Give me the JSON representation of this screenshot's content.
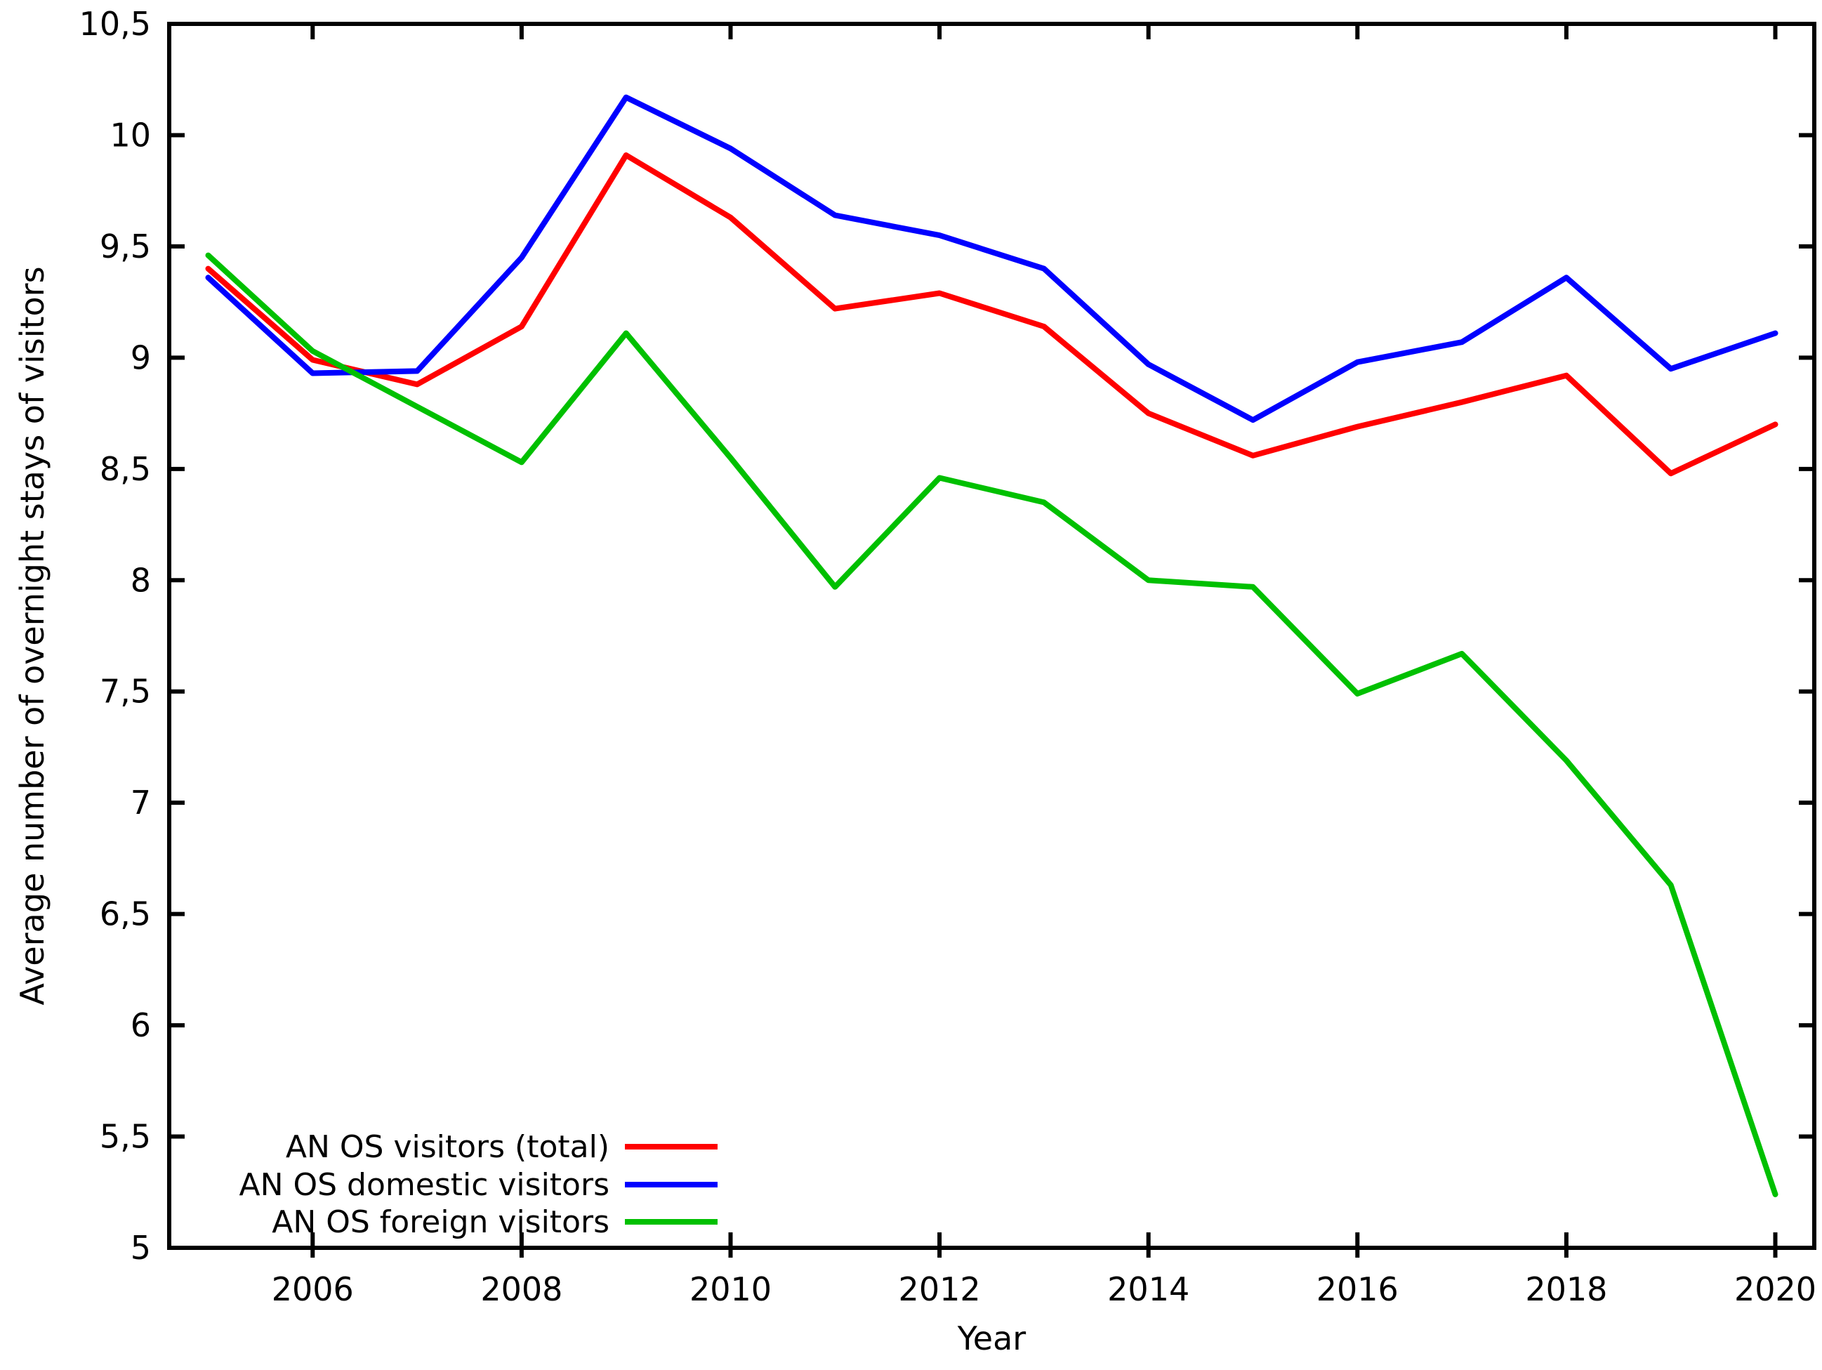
{
  "page": {
    "background": "#ffffff"
  },
  "axes": {
    "xlabel": "Year",
    "ylabel": "Average number of overnight stays of visitors",
    "decimal_separator": ","
  },
  "legend": {
    "position": "bottom-left",
    "items": [
      {
        "label": "AN OS visitors (total)",
        "color": "#ff0000"
      },
      {
        "label": "AN OS domestic visitors",
        "color": "#0000ff"
      },
      {
        "label": "AN OS foreign visitors",
        "color": "#00c000"
      }
    ]
  },
  "chart_data": {
    "type": "line",
    "title": "",
    "xlabel": "Year",
    "ylabel": "Average number of overnight stays of visitors",
    "x": [
      2005,
      2006,
      2007,
      2008,
      2009,
      2010,
      2011,
      2012,
      2013,
      2014,
      2015,
      2016,
      2017,
      2018,
      2019,
      2020
    ],
    "series": [
      {
        "name": "AN OS visitors (total)",
        "color": "#ff0000",
        "values": [
          9.4,
          8.99,
          8.88,
          9.14,
          9.91,
          9.63,
          9.22,
          9.29,
          9.14,
          8.75,
          8.56,
          8.69,
          8.8,
          8.92,
          8.48,
          8.7
        ]
      },
      {
        "name": "AN OS domestic visitors",
        "color": "#0000ff",
        "values": [
          9.36,
          8.93,
          8.94,
          9.45,
          10.17,
          9.94,
          9.64,
          9.55,
          9.4,
          8.97,
          8.72,
          8.98,
          9.07,
          9.36,
          8.95,
          9.11
        ]
      },
      {
        "name": "AN OS foreign visitors",
        "color": "#00c000",
        "values": [
          9.46,
          9.03,
          8.78,
          8.53,
          9.11,
          8.55,
          7.97,
          8.46,
          8.35,
          8.0,
          7.97,
          7.49,
          7.67,
          7.19,
          6.63,
          5.24
        ]
      }
    ],
    "ylim": [
      5,
      10.5
    ],
    "xlim": [
      2004.65,
      2020.37
    ],
    "grid": false,
    "legend_position": "bottom-left",
    "y_ticks": [
      {
        "value": 5,
        "label": "5"
      },
      {
        "value": 5.5,
        "label": "5,5"
      },
      {
        "value": 6,
        "label": "6"
      },
      {
        "value": 6.5,
        "label": "6,5"
      },
      {
        "value": 7,
        "label": "7"
      },
      {
        "value": 7.5,
        "label": "7,5"
      },
      {
        "value": 8,
        "label": "8"
      },
      {
        "value": 8.5,
        "label": "8,5"
      },
      {
        "value": 9,
        "label": "9"
      },
      {
        "value": 9.5,
        "label": "9,5"
      },
      {
        "value": 10,
        "label": "10"
      },
      {
        "value": 10.5,
        "label": "10,5"
      }
    ],
    "x_ticks": [
      {
        "value": 2006,
        "label": "2006"
      },
      {
        "value": 2008,
        "label": "2008"
      },
      {
        "value": 2010,
        "label": "2010"
      },
      {
        "value": 2012,
        "label": "2012"
      },
      {
        "value": 2014,
        "label": "2014"
      },
      {
        "value": 2016,
        "label": "2016"
      },
      {
        "value": 2018,
        "label": "2018"
      },
      {
        "value": 2020,
        "label": "2020"
      }
    ]
  }
}
